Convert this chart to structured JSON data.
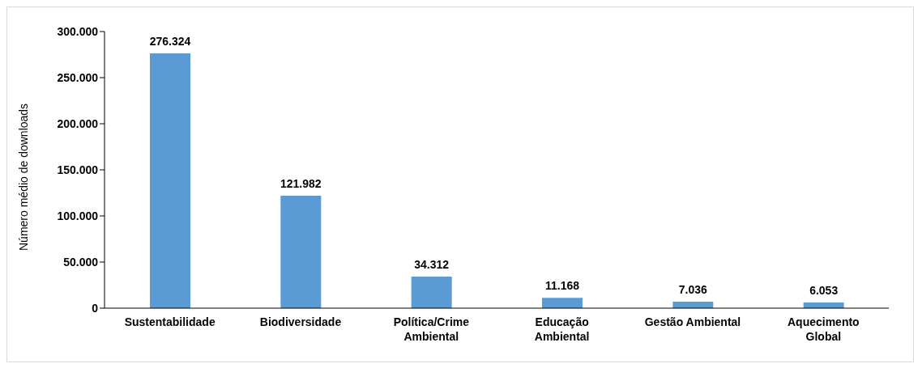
{
  "chart_data": {
    "type": "bar",
    "ylabel": "Número médio de downloads",
    "categories": [
      "Sustentabilidade",
      "Biodiversidade",
      "Política/Crime Ambiental",
      "Educação Ambiental",
      "Gestão Ambiental",
      "Aquecimento Global"
    ],
    "values": [
      276324,
      121982,
      34312,
      11168,
      7036,
      6053
    ],
    "value_labels": [
      "276.324",
      "121.982",
      "34.312",
      "11.168",
      "7.036",
      "6.053"
    ],
    "color": "#5b9bd5",
    "ylim": [
      0,
      300000
    ],
    "yticks": [
      {
        "value": 0,
        "label": "0"
      },
      {
        "value": 50000,
        "label": "50.000"
      },
      {
        "value": 100000,
        "label": "100.000"
      },
      {
        "value": 150000,
        "label": "150.000"
      },
      {
        "value": 200000,
        "label": "200.000"
      },
      {
        "value": 250000,
        "label": "250.000"
      },
      {
        "value": 300000,
        "label": "300.000"
      }
    ],
    "grid": false,
    "legend": false
  }
}
